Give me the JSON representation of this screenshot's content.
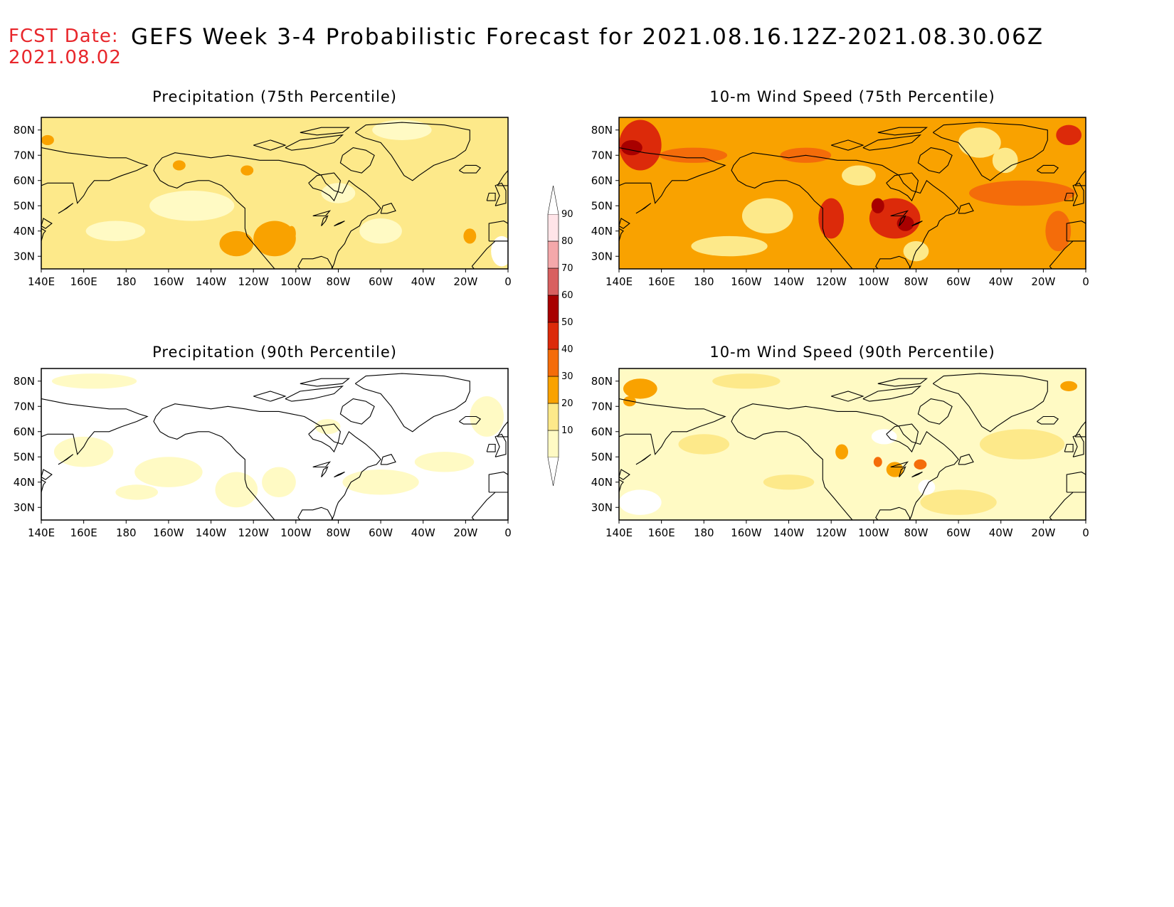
{
  "header": {
    "fcst_label": "FCST Date:",
    "fcst_date": "2021.08.02",
    "title": "GEFS Week 3-4 Probabilistic Forecast for 2021.08.16.12Z-2021.08.30.06Z"
  },
  "axes": {
    "lon_ticks": [
      "140E",
      "160E",
      "180",
      "160W",
      "140W",
      "120W",
      "100W",
      "80W",
      "60W",
      "40W",
      "20W",
      "0"
    ],
    "lon_values": [
      140,
      160,
      180,
      200,
      220,
      240,
      260,
      280,
      300,
      320,
      340,
      360
    ],
    "lat_ticks": [
      "30N",
      "40N",
      "50N",
      "60N",
      "70N",
      "80N"
    ],
    "lat_values": [
      30,
      40,
      50,
      60,
      70,
      80
    ],
    "lon_range": [
      140,
      360
    ],
    "lat_range": [
      25,
      85
    ]
  },
  "colorbar": {
    "levels": [
      10,
      20,
      30,
      40,
      50,
      60,
      70,
      80,
      90
    ],
    "labels": [
      "10",
      "20",
      "30",
      "40",
      "50",
      "60",
      "70",
      "80",
      "90"
    ],
    "colors": [
      "#fffac4",
      "#fde98a",
      "#f9a200",
      "#f46c0a",
      "#dc2a0a",
      "#a80000",
      "#d86060",
      "#f4a8aa",
      "#ffe4e8"
    ]
  },
  "panels": [
    {
      "id": "precip-75",
      "title": "Precipitation (75th Percentile)",
      "base_color": "#fde98a",
      "blobs": [
        {
          "lon": 250,
          "lat": 37,
          "rx": 10,
          "ry": 7,
          "color": "#f9a200"
        },
        {
          "lon": 232,
          "lat": 35,
          "rx": 8,
          "ry": 5,
          "color": "#f9a200"
        },
        {
          "lon": 244,
          "lat": 39,
          "rx": 3,
          "ry": 3,
          "color": "#f9a200"
        },
        {
          "lon": 258,
          "lat": 39,
          "rx": 2,
          "ry": 3,
          "color": "#f9a200"
        },
        {
          "lon": 342,
          "lat": 38,
          "rx": 3,
          "ry": 3,
          "color": "#f9a200"
        },
        {
          "lon": 143,
          "lat": 76,
          "rx": 3,
          "ry": 2,
          "color": "#f9a200"
        },
        {
          "lon": 205,
          "lat": 66,
          "rx": 3,
          "ry": 2,
          "color": "#f9a200"
        },
        {
          "lon": 237,
          "lat": 64,
          "rx": 3,
          "ry": 2,
          "color": "#f9a200"
        },
        {
          "lon": 211,
          "lat": 50,
          "rx": 20,
          "ry": 6,
          "color": "#fffac4"
        },
        {
          "lon": 300,
          "lat": 40,
          "rx": 10,
          "ry": 5,
          "color": "#fffac4"
        },
        {
          "lon": 310,
          "lat": 80,
          "rx": 14,
          "ry": 4,
          "color": "#fffac4"
        },
        {
          "lon": 357,
          "lat": 32,
          "rx": 5,
          "ry": 6,
          "color": "#ffffff"
        },
        {
          "lon": 175,
          "lat": 40,
          "rx": 14,
          "ry": 4,
          "color": "#fffac4"
        },
        {
          "lon": 280,
          "lat": 55,
          "rx": 8,
          "ry": 4,
          "color": "#fffac4"
        }
      ]
    },
    {
      "id": "wind-75",
      "title": "10-m Wind Speed (75th Percentile)",
      "base_color": "#f9a200",
      "blobs": [
        {
          "lon": 150,
          "lat": 74,
          "rx": 10,
          "ry": 10,
          "color": "#dc2a0a"
        },
        {
          "lon": 146,
          "lat": 73,
          "rx": 5,
          "ry": 3,
          "color": "#a80000"
        },
        {
          "lon": 210,
          "lat": 46,
          "rx": 12,
          "ry": 7,
          "color": "#fde98a"
        },
        {
          "lon": 192,
          "lat": 34,
          "rx": 18,
          "ry": 4,
          "color": "#fde98a"
        },
        {
          "lon": 240,
          "lat": 45,
          "rx": 6,
          "ry": 8,
          "color": "#dc2a0a"
        },
        {
          "lon": 270,
          "lat": 45,
          "rx": 12,
          "ry": 8,
          "color": "#dc2a0a"
        },
        {
          "lon": 275,
          "lat": 43,
          "rx": 4,
          "ry": 3,
          "color": "#a80000"
        },
        {
          "lon": 262,
          "lat": 50,
          "rx": 3,
          "ry": 3,
          "color": "#a80000"
        },
        {
          "lon": 330,
          "lat": 55,
          "rx": 25,
          "ry": 5,
          "color": "#f46c0a"
        },
        {
          "lon": 347,
          "lat": 40,
          "rx": 6,
          "ry": 8,
          "color": "#f46c0a"
        },
        {
          "lon": 310,
          "lat": 75,
          "rx": 10,
          "ry": 6,
          "color": "#fde98a"
        },
        {
          "lon": 322,
          "lat": 68,
          "rx": 6,
          "ry": 5,
          "color": "#fde98a"
        },
        {
          "lon": 253,
          "lat": 62,
          "rx": 8,
          "ry": 4,
          "color": "#fde98a"
        },
        {
          "lon": 280,
          "lat": 32,
          "rx": 6,
          "ry": 4,
          "color": "#fde98a"
        },
        {
          "lon": 352,
          "lat": 78,
          "rx": 6,
          "ry": 4,
          "color": "#dc2a0a"
        },
        {
          "lon": 175,
          "lat": 70,
          "rx": 16,
          "ry": 3,
          "color": "#f46c0a"
        },
        {
          "lon": 228,
          "lat": 70,
          "rx": 12,
          "ry": 3,
          "color": "#f46c0a"
        }
      ]
    },
    {
      "id": "precip-90",
      "title": "Precipitation (90th Percentile)",
      "base_color": "#ffffff",
      "blobs": [
        {
          "lon": 200,
          "lat": 44,
          "rx": 16,
          "ry": 6,
          "color": "#fffac4"
        },
        {
          "lon": 232,
          "lat": 37,
          "rx": 10,
          "ry": 7,
          "color": "#fffac4"
        },
        {
          "lon": 252,
          "lat": 40,
          "rx": 8,
          "ry": 6,
          "color": "#fffac4"
        },
        {
          "lon": 300,
          "lat": 40,
          "rx": 18,
          "ry": 5,
          "color": "#fffac4"
        },
        {
          "lon": 165,
          "lat": 80,
          "rx": 20,
          "ry": 3,
          "color": "#fffac4"
        },
        {
          "lon": 160,
          "lat": 52,
          "rx": 14,
          "ry": 6,
          "color": "#fffac4"
        },
        {
          "lon": 350,
          "lat": 66,
          "rx": 8,
          "ry": 8,
          "color": "#fffac4"
        },
        {
          "lon": 330,
          "lat": 48,
          "rx": 14,
          "ry": 4,
          "color": "#fffac4"
        },
        {
          "lon": 275,
          "lat": 62,
          "rx": 6,
          "ry": 3,
          "color": "#fffac4"
        },
        {
          "lon": 185,
          "lat": 36,
          "rx": 10,
          "ry": 3,
          "color": "#fffac4"
        }
      ]
    },
    {
      "id": "wind-90",
      "title": "10-m Wind Speed (90th Percentile)",
      "base_color": "#fffac4",
      "blobs": [
        {
          "lon": 150,
          "lat": 77,
          "rx": 8,
          "ry": 4,
          "color": "#f9a200"
        },
        {
          "lon": 145,
          "lat": 72,
          "rx": 3,
          "ry": 2,
          "color": "#f9a200"
        },
        {
          "lon": 270,
          "lat": 45,
          "rx": 4,
          "ry": 3,
          "color": "#f9a200"
        },
        {
          "lon": 262,
          "lat": 48,
          "rx": 2,
          "ry": 2,
          "color": "#f46c0a"
        },
        {
          "lon": 282,
          "lat": 47,
          "rx": 3,
          "ry": 2,
          "color": "#f46c0a"
        },
        {
          "lon": 352,
          "lat": 78,
          "rx": 4,
          "ry": 2,
          "color": "#f9a200"
        },
        {
          "lon": 245,
          "lat": 52,
          "rx": 3,
          "ry": 3,
          "color": "#f9a200"
        },
        {
          "lon": 220,
          "lat": 40,
          "rx": 12,
          "ry": 3,
          "color": "#fde98a"
        },
        {
          "lon": 300,
          "lat": 32,
          "rx": 18,
          "ry": 5,
          "color": "#fde98a"
        },
        {
          "lon": 330,
          "lat": 55,
          "rx": 20,
          "ry": 6,
          "color": "#fde98a"
        },
        {
          "lon": 180,
          "lat": 55,
          "rx": 12,
          "ry": 4,
          "color": "#fde98a"
        },
        {
          "lon": 150,
          "lat": 32,
          "rx": 10,
          "ry": 5,
          "color": "#ffffff"
        },
        {
          "lon": 265,
          "lat": 58,
          "rx": 6,
          "ry": 3,
          "color": "#ffffff"
        },
        {
          "lon": 285,
          "lat": 38,
          "rx": 4,
          "ry": 3,
          "color": "#ffffff"
        },
        {
          "lon": 200,
          "lat": 80,
          "rx": 16,
          "ry": 3,
          "color": "#fde98a"
        }
      ]
    }
  ]
}
